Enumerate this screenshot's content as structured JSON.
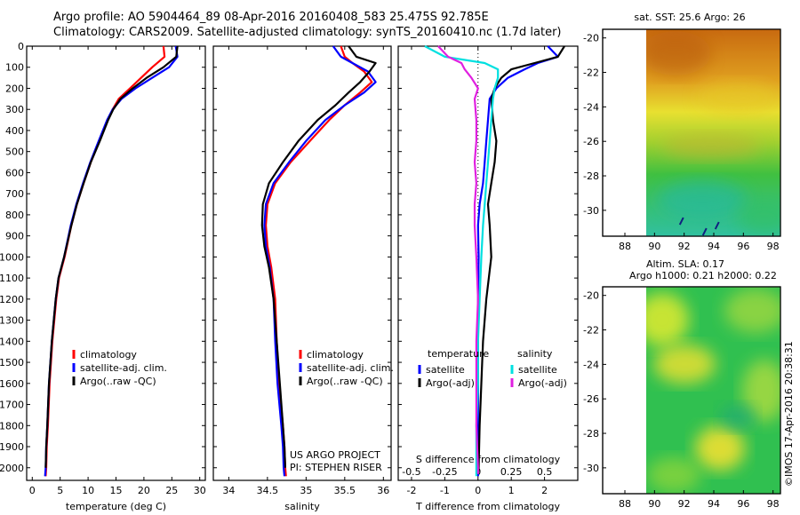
{
  "header": {
    "line1": "Argo profile: AO 5904464_89 08-Apr-2016 20160408_583 25.475S 92.785E",
    "line2": "Climatology: CARS2009. Satellite-adjusted climatology: synTS_20160410.nc (1.7d later)"
  },
  "colors": {
    "climatology": "#ff0000",
    "satellite": "#0000ff",
    "argo": "#000000",
    "sat_salinity": "#00e0e0",
    "argo_salinity": "#e020e0"
  },
  "chart_data": [
    {
      "type": "line",
      "id": "temperature",
      "xlabel": "temperature (deg C)",
      "ylabel": "",
      "xlim": [
        -1,
        31
      ],
      "ylim": [
        2060,
        0
      ],
      "xticks": [
        0,
        5,
        10,
        15,
        20,
        25,
        30
      ],
      "yticks": [
        0,
        100,
        200,
        300,
        400,
        500,
        600,
        700,
        800,
        900,
        1000,
        1100,
        1200,
        1300,
        1400,
        1500,
        1600,
        1700,
        1800,
        1900,
        2000
      ],
      "legend": [
        "climatology",
        "satellite-adj. clim.",
        "Argo(..raw -QC)"
      ],
      "legend_loc": "lower-right",
      "series": [
        {
          "name": "climatology",
          "color": "#ff0000",
          "x": [
            23.5,
            23.7,
            21.5,
            19.5,
            17.5,
            15.5,
            14.4,
            13.5,
            12.0,
            10.5,
            9.2,
            8.0,
            7.0,
            5.8,
            4.8,
            4.3,
            3.6,
            3.1,
            2.8,
            2.6,
            2.5,
            2.4
          ],
          "y": [
            0,
            50,
            100,
            150,
            200,
            250,
            300,
            350,
            450,
            550,
            650,
            750,
            850,
            1000,
            1100,
            1200,
            1400,
            1600,
            1800,
            1900,
            2000,
            2040
          ]
        },
        {
          "name": "satellite-adj. clim.",
          "color": "#0000ff",
          "x": [
            25.7,
            26.0,
            24.5,
            21.5,
            18.5,
            16.0,
            14.4,
            13.4,
            11.9,
            10.4,
            9.1,
            7.9,
            6.9,
            5.7,
            4.7,
            4.2,
            3.5,
            3.0,
            2.7,
            2.5,
            2.4,
            2.3
          ],
          "y": [
            0,
            50,
            100,
            150,
            200,
            250,
            300,
            350,
            450,
            550,
            650,
            750,
            850,
            1000,
            1100,
            1200,
            1400,
            1600,
            1800,
            1900,
            2000,
            2040
          ]
        },
        {
          "name": "Argo(..raw -QC)",
          "color": "#000000",
          "x": [
            26.0,
            25.8,
            23.5,
            20.5,
            18.0,
            15.8,
            14.5,
            13.6,
            12.1,
            10.5,
            9.2,
            8.0,
            7.0,
            5.7,
            4.7,
            4.2,
            3.5,
            3.0,
            2.7,
            2.5,
            2.4
          ],
          "y": [
            0,
            50,
            100,
            150,
            200,
            250,
            300,
            350,
            450,
            550,
            650,
            750,
            850,
            1000,
            1100,
            1200,
            1400,
            1600,
            1800,
            1900,
            2000
          ]
        }
      ]
    },
    {
      "type": "line",
      "id": "salinity",
      "xlabel": "salinity",
      "ylabel": "",
      "xlim": [
        33.8,
        36.1
      ],
      "ylim": [
        2060,
        0
      ],
      "xticks": [
        34,
        34.5,
        35,
        35.5,
        36
      ],
      "legend": [
        "climatology",
        "satellite-adj. clim.",
        "Argo(..raw -QC)"
      ],
      "legend_loc": "lower-right",
      "annotation": [
        "US ARGO PROJECT",
        "PI: STEPHEN RISER"
      ],
      "series": [
        {
          "name": "climatology",
          "color": "#ff0000",
          "x": [
            35.45,
            35.5,
            35.6,
            35.75,
            35.85,
            35.7,
            35.5,
            35.3,
            35.05,
            34.8,
            34.6,
            34.5,
            34.48,
            34.5,
            34.55,
            34.6,
            34.62,
            34.65,
            34.7,
            34.72,
            34.73,
            34.74
          ],
          "y": [
            0,
            50,
            80,
            120,
            170,
            220,
            280,
            350,
            450,
            550,
            650,
            750,
            850,
            950,
            1050,
            1200,
            1400,
            1600,
            1800,
            1900,
            2000,
            2040
          ]
        },
        {
          "name": "satellite-adj. clim.",
          "color": "#0000ff",
          "x": [
            35.35,
            35.45,
            35.6,
            35.8,
            35.9,
            35.75,
            35.5,
            35.25,
            35.0,
            34.78,
            34.58,
            34.48,
            34.46,
            34.48,
            34.53,
            34.58,
            34.6,
            34.63,
            34.68,
            34.7,
            34.71,
            34.72
          ],
          "y": [
            0,
            50,
            80,
            120,
            170,
            220,
            280,
            350,
            450,
            550,
            650,
            750,
            850,
            950,
            1050,
            1200,
            1400,
            1600,
            1800,
            1900,
            2000,
            2040
          ]
        },
        {
          "name": "Argo(..raw -QC)",
          "color": "#000000",
          "x": [
            35.55,
            35.65,
            35.9,
            35.82,
            35.7,
            35.55,
            35.38,
            35.15,
            34.9,
            34.7,
            34.52,
            34.44,
            34.43,
            34.46,
            34.52,
            34.58,
            34.62,
            34.66,
            34.7,
            34.72,
            34.73
          ],
          "y": [
            0,
            50,
            80,
            120,
            170,
            220,
            280,
            350,
            450,
            550,
            650,
            750,
            850,
            950,
            1050,
            1200,
            1400,
            1600,
            1800,
            1900,
            2000
          ]
        }
      ]
    },
    {
      "type": "line",
      "id": "differences",
      "xlabel": "T difference from climatology",
      "xlabel_top": "S difference from climatology",
      "ylabel": "",
      "xlim": [
        -2.4,
        3.0
      ],
      "ylim": [
        2060,
        0
      ],
      "xticks": [
        -2,
        -1,
        0,
        1,
        2
      ],
      "xticks_s": [
        "-0.5",
        "-0.25",
        "0",
        "0.25",
        "0.5"
      ],
      "legend_titles": [
        "temperature",
        "salinity"
      ],
      "legend": [
        "satellite",
        "Argo(-adj)",
        "satellite",
        "Argo(-adj)"
      ],
      "legend_loc": "lower-center",
      "series": [
        {
          "name": "satellite",
          "group": "temperature",
          "color": "#0000ff",
          "x": [
            2.1,
            2.4,
            1.8,
            1.4,
            0.9,
            0.55,
            0.35,
            0.3,
            0.25,
            0.2,
            0.15,
            0.05,
            0.0,
            0.02,
            0.0,
            0.0,
            0.0,
            0.0,
            0.0,
            0.0
          ],
          "y": [
            0,
            50,
            80,
            110,
            150,
            200,
            250,
            350,
            450,
            550,
            650,
            750,
            850,
            1000,
            1200,
            1400,
            1600,
            1800,
            2000,
            2040
          ]
        },
        {
          "name": "Argo(-adj)",
          "group": "temperature",
          "color": "#000000",
          "x": [
            2.6,
            2.4,
            1.7,
            1.0,
            0.7,
            0.5,
            0.4,
            0.45,
            0.55,
            0.5,
            0.4,
            0.3,
            0.35,
            0.4,
            0.25,
            0.15,
            0.1,
            0.05,
            0.02,
            0.0
          ],
          "y": [
            0,
            50,
            80,
            110,
            150,
            200,
            250,
            350,
            450,
            550,
            650,
            750,
            850,
            1000,
            1200,
            1400,
            1600,
            1800,
            2000,
            2030
          ]
        },
        {
          "name": "satellite",
          "group": "salinity",
          "color": "#00e0e0",
          "x": [
            -1.6,
            -1.0,
            0.2,
            0.6,
            0.6,
            0.5,
            0.45,
            0.4,
            0.35,
            0.3,
            0.25,
            0.2,
            0.15,
            0.1,
            0.05,
            0.0,
            0.0,
            -0.05,
            -0.05,
            -0.05
          ],
          "y": [
            0,
            50,
            80,
            110,
            150,
            200,
            250,
            350,
            450,
            550,
            650,
            750,
            850,
            1000,
            1200,
            1400,
            1600,
            1800,
            2000,
            2040
          ]
        },
        {
          "name": "Argo(-adj)",
          "group": "salinity",
          "color": "#e020e0",
          "x": [
            -1.2,
            -0.9,
            -0.5,
            -0.4,
            -0.2,
            0.0,
            -0.1,
            -0.05,
            -0.05,
            -0.1,
            -0.05,
            -0.1,
            -0.1,
            -0.05,
            0.0,
            -0.05,
            -0.05,
            -0.05,
            0.0,
            0.0
          ],
          "y": [
            0,
            50,
            80,
            110,
            150,
            200,
            250,
            350,
            450,
            550,
            650,
            750,
            850,
            1000,
            1200,
            1400,
            1600,
            1800,
            2000,
            2030
          ]
        }
      ]
    },
    {
      "type": "heatmap",
      "id": "sst_map",
      "title": "sat. SST: 25.6 Argo: 26",
      "xlim": [
        86.5,
        98.5
      ],
      "ylim": [
        -31.5,
        -19.5
      ],
      "xticks": [
        88,
        90,
        92,
        94,
        96,
        98
      ],
      "yticks": [
        -20,
        -22,
        -24,
        -26,
        -28,
        -30
      ],
      "argo_position": {
        "lon": 92.785,
        "lat": -25.475
      }
    },
    {
      "type": "heatmap",
      "id": "sla_map",
      "title": "Altim. SLA: 0.17",
      "subtitle": "Argo h1000: 0.21 h2000: 0.22",
      "xlim": [
        86.5,
        98.5
      ],
      "ylim": [
        -31.5,
        -19.5
      ],
      "xticks": [
        88,
        90,
        92,
        94,
        96,
        98
      ],
      "yticks": [
        -20,
        -22,
        -24,
        -26,
        -28,
        -30
      ]
    }
  ],
  "footer": {
    "credit": "©IMOS 17-Apr-2016 20:38:31"
  }
}
